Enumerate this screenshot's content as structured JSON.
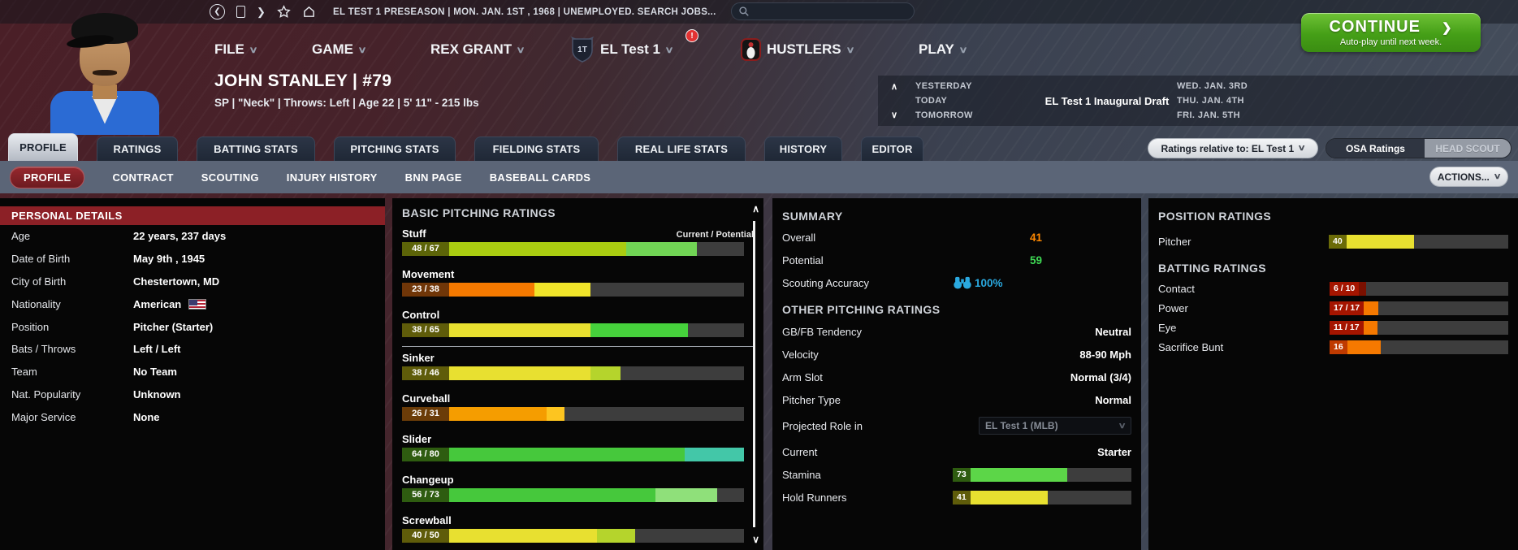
{
  "topbar": {
    "status": "EL TEST 1 PRESEASON  |  MON. JAN. 1ST , 1968  |  UNEMPLOYED. SEARCH JOBS...",
    "back": "❮",
    "forward": "❯"
  },
  "menu": {
    "file": "FILE",
    "game": "GAME",
    "manager": "REX GRANT",
    "league": "EL Test 1",
    "team": "HUSTLERS",
    "play": "PLAY",
    "alert": "!",
    "chevron": "∨"
  },
  "continue_btn": {
    "label": "CONTINUE",
    "chevron": "❯",
    "sub": "Auto-play until next week."
  },
  "player": {
    "name_line": "JOHN STANLEY  |  #79",
    "info_line": "SP | \"Neck\" | Throws: Left  |  Age 22  |  5' 11\" - 215 lbs"
  },
  "schedule": {
    "up": "∧",
    "down": "∨",
    "rows": [
      {
        "label": "YESTERDAY",
        "event": "",
        "date": "WED. JAN. 3RD"
      },
      {
        "label": "TODAY",
        "event": "EL Test 1 Inaugural Draft",
        "date": "THU. JAN. 4TH"
      },
      {
        "label": "TOMORROW",
        "event": "",
        "date": "FRI. JAN. 5TH"
      }
    ]
  },
  "main_tabs": [
    {
      "label": "PROFILE",
      "active": true
    },
    {
      "label": "RATINGS",
      "active": false
    },
    {
      "label": "BATTING STATS",
      "active": false
    },
    {
      "label": "PITCHING STATS",
      "active": false
    },
    {
      "label": "FIELDING STATS",
      "active": false
    },
    {
      "label": "REAL LIFE STATS",
      "active": false
    },
    {
      "label": "HISTORY",
      "active": false
    },
    {
      "label": "EDITOR",
      "active": false
    }
  ],
  "ratings_controls": {
    "relative_label": "Ratings relative to: EL Test 1",
    "chevron": "∨",
    "osa": "OSA Ratings",
    "head_scout": "HEAD SCOUT"
  },
  "sub_tabs": [
    {
      "label": "PROFILE",
      "active": true
    },
    {
      "label": "CONTRACT",
      "active": false
    },
    {
      "label": "SCOUTING",
      "active": false
    },
    {
      "label": "INJURY HISTORY",
      "active": false
    },
    {
      "label": "BNN PAGE",
      "active": false
    },
    {
      "label": "BASEBALL CARDS",
      "active": false
    }
  ],
  "actions_btn": {
    "label": "ACTIONS...",
    "chevron": "∨"
  },
  "personal": {
    "title": "PERSONAL DETAILS",
    "rows": [
      {
        "label": "Age",
        "value": "22 years, 237 days"
      },
      {
        "label": "Date of Birth",
        "value": "May 9th , 1945"
      },
      {
        "label": "City of Birth",
        "value": "Chestertown, MD"
      },
      {
        "label": "Nationality",
        "value": "American",
        "flag": "us-flag"
      },
      {
        "label": "Position",
        "value": "Pitcher (Starter)"
      },
      {
        "label": "Bats / Throws",
        "value": "Left / Left"
      },
      {
        "label": "Team",
        "value": "No Team"
      },
      {
        "label": "Nat. Popularity",
        "value": "Unknown"
      },
      {
        "label": "Major Service",
        "value": "None"
      }
    ]
  },
  "pitching": {
    "title": "BASIC PITCHING RATINGS",
    "column_header": "Current / Potential",
    "divider_after": 3,
    "ratings": [
      {
        "name": "Stuff",
        "display": "48 / 67",
        "current": 48,
        "potential": 67,
        "badge_bg": "#5c6408",
        "cur_color": "#aacc11",
        "pot_color": "#71d455",
        "cur_pct": 60,
        "pot_pct": 84
      },
      {
        "name": "Movement",
        "display": "23 / 38",
        "current": 23,
        "potential": 38,
        "badge_bg": "#703608",
        "cur_color": "#f57900",
        "pot_color": "#f0e42a",
        "cur_pct": 29,
        "pot_pct": 48
      },
      {
        "name": "Control",
        "display": "38 / 65",
        "current": 38,
        "potential": 65,
        "badge_bg": "#5f5c0a",
        "cur_color": "#e8e030",
        "pot_color": "#46d13c",
        "cur_pct": 48,
        "pot_pct": 81
      },
      {
        "name": "Sinker",
        "display": "38 / 46",
        "current": 38,
        "potential": 46,
        "badge_bg": "#5f5c0a",
        "cur_color": "#e8e030",
        "pot_color": "#b5d42c",
        "cur_pct": 48,
        "pot_pct": 58
      },
      {
        "name": "Curveball",
        "display": "26 / 31",
        "current": 26,
        "potential": 31,
        "badge_bg": "#6b3c08",
        "cur_color": "#f59d00",
        "pot_color": "#fdc520",
        "cur_pct": 33,
        "pot_pct": 39
      },
      {
        "name": "Slider",
        "display": "64 / 80",
        "current": 64,
        "potential": 80,
        "badge_bg": "#2e5c10",
        "cur_color": "#46c83c",
        "pot_color": "#43c7a8",
        "cur_pct": 80,
        "pot_pct": 100
      },
      {
        "name": "Changeup",
        "display": "56 / 73",
        "current": 56,
        "potential": 73,
        "badge_bg": "#2e5c10",
        "cur_color": "#46c83c",
        "pot_color": "#8fe07a",
        "cur_pct": 70,
        "pot_pct": 91
      },
      {
        "name": "Screwball",
        "display": "40 / 50",
        "current": 40,
        "potential": 50,
        "badge_bg": "#5f5c0a",
        "cur_color": "#e8e030",
        "pot_color": "#b5d42c",
        "cur_pct": 50,
        "pot_pct": 63
      }
    ],
    "scroll_up": "∧",
    "scroll_down": "∨"
  },
  "summary": {
    "title": "SUMMARY",
    "overall": {
      "label": "Overall",
      "value": "41",
      "color": "#ff8800"
    },
    "potential": {
      "label": "Potential",
      "value": "59",
      "color": "#3fd954"
    },
    "scouting": {
      "label": "Scouting Accuracy",
      "value": "100%",
      "color": "#2aa9e0"
    },
    "other_title": "OTHER PITCHING RATINGS",
    "rows": [
      {
        "label": "GB/FB Tendency",
        "value": "Neutral"
      },
      {
        "label": "Velocity",
        "value": "88-90 Mph"
      },
      {
        "label": "Arm Slot",
        "value": "Normal (3/4)"
      },
      {
        "label": "Pitcher Type",
        "value": "Normal"
      }
    ],
    "projected": {
      "label": "Projected Role in",
      "value": "EL Test 1 (MLB)",
      "chevron": "∨"
    },
    "current_role": {
      "label": "Current",
      "value": "Starter"
    },
    "stamina": {
      "label": "Stamina",
      "value": "73",
      "badge_bg": "#2e5c10",
      "bar_color": "#5cd648",
      "pct": 60
    },
    "hold": {
      "label": "Hold Runners",
      "value": "41",
      "badge_bg": "#5f5c0a",
      "bar_color": "#e8e030",
      "pct": 48
    }
  },
  "position_panel": {
    "title": "POSITION RATINGS",
    "pitcher": {
      "label": "Pitcher",
      "value": "40",
      "badge_bg": "#6b6b08",
      "bar_color": "#e8e030",
      "pct": 42
    },
    "batting_title": "BATTING RATINGS",
    "rows": [
      {
        "label": "Contact",
        "value": "6 / 10",
        "badge_bg": "#a51500",
        "bar_color": "#7a1000",
        "pct": 5
      },
      {
        "label": "Power",
        "value": "17 / 17",
        "badge_bg": "#a51500",
        "bar_color": "#f57900",
        "pct": 10
      },
      {
        "label": "Eye",
        "value": "11 / 17",
        "badge_bg": "#a51500",
        "bar_color": "#f57900",
        "pct": 10
      },
      {
        "label": "Sacrifice Bunt",
        "value": "16",
        "badge_bg": "#bf3a00",
        "bar_color": "#f57900",
        "pct": 21
      }
    ]
  },
  "colors": {
    "header_red": "#8c2026",
    "panel_bg": "#060606",
    "accent_green": "#459f17"
  }
}
